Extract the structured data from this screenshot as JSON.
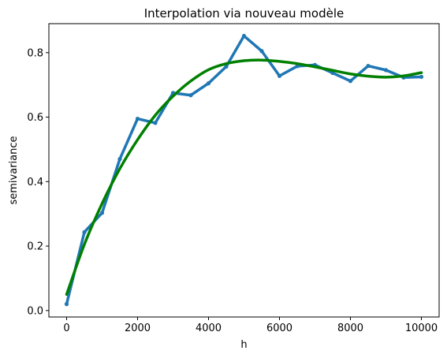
{
  "chart_data": {
    "type": "line",
    "title": "Interpolation via nouveau modèle",
    "xlabel": "h",
    "ylabel": "semivariance",
    "xlim": [
      -500,
      10500
    ],
    "ylim": [
      -0.02,
      0.89
    ],
    "xticks": [
      0,
      2000,
      4000,
      6000,
      8000,
      10000
    ],
    "yticks": [
      0.0,
      0.2,
      0.4,
      0.6,
      0.8
    ],
    "xtick_labels": [
      "0",
      "2000",
      "4000",
      "6000",
      "8000",
      "10000"
    ],
    "ytick_labels": [
      "0.0",
      "0.2",
      "0.4",
      "0.6",
      "0.8"
    ],
    "grid": false,
    "series": [
      {
        "style": "line-with-markers",
        "color": "#1f77b4",
        "x": [
          0,
          500,
          1000,
          1500,
          2000,
          2500,
          3000,
          3500,
          4000,
          4500,
          5000,
          5500,
          6000,
          6500,
          7000,
          7500,
          8000,
          8500,
          9000,
          9500,
          10000
        ],
        "y": [
          0.02,
          0.243,
          0.303,
          0.47,
          0.595,
          0.582,
          0.675,
          0.668,
          0.705,
          0.757,
          0.852,
          0.805,
          0.728,
          0.758,
          0.762,
          0.737,
          0.712,
          0.759,
          0.746,
          0.723,
          0.725
        ]
      },
      {
        "style": "smooth-line",
        "color": "#008000",
        "x": [
          0,
          500,
          1000,
          1500,
          2000,
          2500,
          3000,
          3500,
          4000,
          4500,
          5000,
          5500,
          6000,
          6500,
          7000,
          7500,
          8000,
          8500,
          9000,
          9500,
          10000
        ],
        "y": [
          0.05,
          0.205,
          0.332,
          0.44,
          0.53,
          0.606,
          0.665,
          0.712,
          0.747,
          0.766,
          0.775,
          0.777,
          0.773,
          0.766,
          0.756,
          0.745,
          0.734,
          0.727,
          0.724,
          0.728,
          0.738
        ]
      }
    ]
  }
}
